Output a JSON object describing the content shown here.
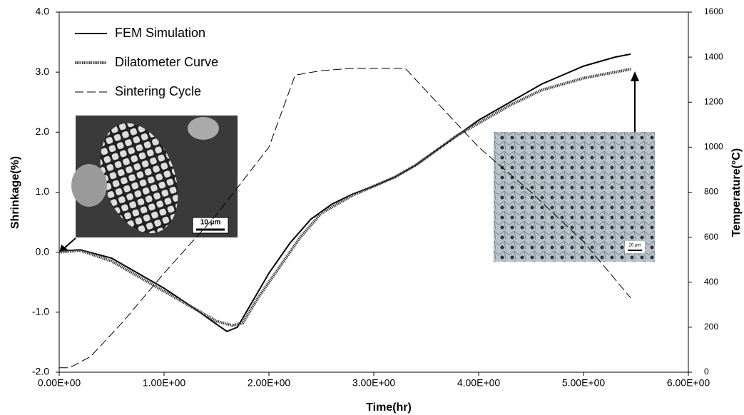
{
  "chart_data": {
    "type": "line",
    "x_label": "Time(hr)",
    "y_label": "Shrinkage(%)",
    "y2_label": "Temperature(°C)",
    "xlim": [
      0,
      6
    ],
    "ylim": [
      -2,
      4
    ],
    "y2lim": [
      0,
      1600
    ],
    "xticks": [
      {
        "value": 0,
        "label": "0.00E+00"
      },
      {
        "value": 1,
        "label": "1.00E+00"
      },
      {
        "value": 2,
        "label": "2.00E+00"
      },
      {
        "value": 3,
        "label": "3.00E+00"
      },
      {
        "value": 4,
        "label": "4.00E+00"
      },
      {
        "value": 5,
        "label": "5.00E+00"
      },
      {
        "value": 6,
        "label": "6.00E+00"
      }
    ],
    "yticks": [
      {
        "value": -2,
        "label": "-2.0"
      },
      {
        "value": -1,
        "label": "-1.0"
      },
      {
        "value": 0,
        "label": "0.0"
      },
      {
        "value": 1,
        "label": "1.0"
      },
      {
        "value": 2,
        "label": "2.0"
      },
      {
        "value": 3,
        "label": "3.0"
      },
      {
        "value": 4,
        "label": "4.0"
      }
    ],
    "y2ticks": [
      0,
      200,
      400,
      600,
      800,
      1000,
      1200,
      1400,
      1600
    ],
    "legend": "top-left",
    "series": [
      {
        "name": "FEM Simulation",
        "color": "#000000",
        "style": "solid",
        "x": [
          0,
          0.2,
          0.5,
          0.8,
          1.0,
          1.3,
          1.5,
          1.6,
          1.7,
          1.85,
          2.0,
          2.2,
          2.4,
          2.6,
          2.8,
          3.0,
          3.2,
          3.4,
          3.6,
          3.8,
          4.0,
          4.3,
          4.6,
          5.0,
          5.3,
          5.45
        ],
        "values": [
          0.02,
          0.04,
          -0.1,
          -0.4,
          -0.6,
          -0.95,
          -1.2,
          -1.32,
          -1.25,
          -0.8,
          -0.35,
          0.15,
          0.55,
          0.8,
          0.97,
          1.1,
          1.25,
          1.45,
          1.7,
          1.95,
          2.2,
          2.5,
          2.8,
          3.1,
          3.25,
          3.3
        ]
      },
      {
        "name": "Dilatometer Curve",
        "color": "#444444",
        "style": "hatched",
        "x": [
          0,
          0.2,
          0.5,
          0.8,
          1.0,
          1.3,
          1.5,
          1.65,
          1.75,
          1.9,
          2.1,
          2.3,
          2.5,
          2.8,
          3.0,
          3.2,
          3.4,
          3.6,
          3.8,
          4.0,
          4.3,
          4.6,
          5.0,
          5.3,
          5.45
        ],
        "values": [
          0.0,
          0.03,
          -0.15,
          -0.45,
          -0.65,
          -0.95,
          -1.15,
          -1.22,
          -1.18,
          -0.75,
          -0.25,
          0.25,
          0.65,
          0.95,
          1.1,
          1.25,
          1.45,
          1.7,
          1.95,
          2.15,
          2.45,
          2.7,
          2.9,
          3.0,
          3.05
        ]
      },
      {
        "name": "Sintering Cycle",
        "color": "#000000",
        "style": "dashed",
        "axis": "y2",
        "x": [
          0,
          0.1,
          0.3,
          0.6,
          1.0,
          1.5,
          2.0,
          2.25,
          2.5,
          2.8,
          3.3,
          3.6,
          4.0,
          4.5,
          5.0,
          5.45
        ],
        "values": [
          20,
          20,
          70,
          220,
          440,
          700,
          1000,
          1320,
          1340,
          1350,
          1350,
          1200,
          1000,
          800,
          580,
          330
        ]
      }
    ],
    "annotations": [
      "10 µm",
      "20 µm"
    ]
  }
}
